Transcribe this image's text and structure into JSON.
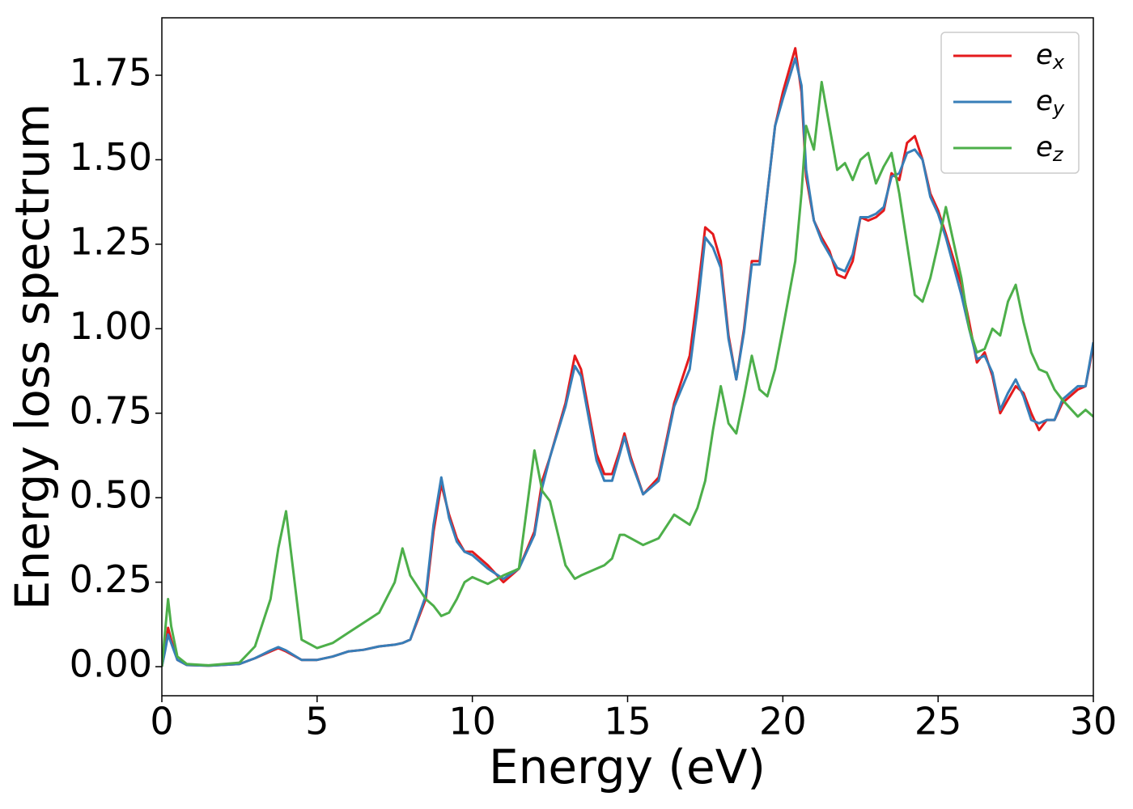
{
  "chart_data": {
    "type": "line",
    "xlabel": "Energy (eV)",
    "ylabel": "Energy loss spectrum",
    "x": [
      0,
      0.1,
      0.2,
      0.3,
      0.5,
      0.8,
      1.5,
      2.5,
      3,
      3.5,
      3.75,
      4,
      4.5,
      5,
      5.5,
      6,
      6.5,
      7,
      7.5,
      7.75,
      8,
      8.5,
      8.75,
      9,
      9.25,
      9.5,
      9.75,
      10,
      10.5,
      11,
      11.5,
      12,
      12.25,
      12.5,
      13,
      13.3,
      13.5,
      14,
      14.25,
      14.5,
      14.75,
      14.9,
      15.1,
      15.5,
      16,
      16.5,
      17,
      17.25,
      17.5,
      17.75,
      18,
      18.25,
      18.5,
      18.75,
      19,
      19.25,
      19.5,
      19.75,
      20,
      20.4,
      20.6,
      20.75,
      21,
      21.25,
      21.5,
      21.75,
      22,
      22.25,
      22.5,
      22.75,
      23,
      23.25,
      23.5,
      23.75,
      24,
      24.25,
      24.5,
      24.75,
      25,
      25.25,
      25.75,
      26,
      26.25,
      26.5,
      26.75,
      27,
      27.25,
      27.5,
      27.75,
      28,
      28.25,
      28.5,
      28.75,
      29,
      29.5,
      29.75,
      30
    ],
    "series": [
      {
        "name": "ex",
        "color": "#e41a1c",
        "values": [
          0,
          0.05,
          0.115,
          0.08,
          0.02,
          0.005,
          0.003,
          0.008,
          0.025,
          0.045,
          0.055,
          0.045,
          0.02,
          0.02,
          0.03,
          0.045,
          0.05,
          0.06,
          0.065,
          0.07,
          0.08,
          0.2,
          0.4,
          0.54,
          0.45,
          0.38,
          0.34,
          0.34,
          0.3,
          0.25,
          0.29,
          0.4,
          0.55,
          0.62,
          0.78,
          0.92,
          0.88,
          0.63,
          0.57,
          0.57,
          0.64,
          0.69,
          0.62,
          0.51,
          0.56,
          0.78,
          0.92,
          1.1,
          1.3,
          1.28,
          1.2,
          0.98,
          0.85,
          1.0,
          1.2,
          1.2,
          1.4,
          1.6,
          1.7,
          1.83,
          1.7,
          1.45,
          1.32,
          1.27,
          1.23,
          1.16,
          1.15,
          1.2,
          1.33,
          1.32,
          1.33,
          1.35,
          1.46,
          1.44,
          1.55,
          1.57,
          1.5,
          1.4,
          1.35,
          1.28,
          1.13,
          1.02,
          0.9,
          0.93,
          0.86,
          0.75,
          0.79,
          0.83,
          0.81,
          0.75,
          0.7,
          0.73,
          0.73,
          0.78,
          0.82,
          0.83,
          0.95
        ]
      },
      {
        "name": "ey",
        "color": "#377eb8",
        "values": [
          0,
          0.045,
          0.095,
          0.07,
          0.02,
          0.005,
          0.003,
          0.008,
          0.025,
          0.048,
          0.058,
          0.048,
          0.02,
          0.02,
          0.03,
          0.045,
          0.05,
          0.06,
          0.065,
          0.07,
          0.08,
          0.21,
          0.42,
          0.56,
          0.44,
          0.37,
          0.34,
          0.33,
          0.29,
          0.26,
          0.29,
          0.39,
          0.53,
          0.62,
          0.77,
          0.89,
          0.86,
          0.61,
          0.55,
          0.55,
          0.63,
          0.68,
          0.61,
          0.51,
          0.55,
          0.77,
          0.88,
          1.06,
          1.27,
          1.24,
          1.18,
          0.97,
          0.85,
          0.99,
          1.19,
          1.19,
          1.4,
          1.6,
          1.68,
          1.8,
          1.72,
          1.47,
          1.32,
          1.26,
          1.22,
          1.18,
          1.17,
          1.22,
          1.33,
          1.33,
          1.34,
          1.36,
          1.45,
          1.46,
          1.52,
          1.53,
          1.5,
          1.39,
          1.34,
          1.27,
          1.1,
          1.0,
          0.91,
          0.92,
          0.87,
          0.76,
          0.81,
          0.85,
          0.8,
          0.73,
          0.72,
          0.73,
          0.73,
          0.79,
          0.83,
          0.83,
          0.96
        ]
      },
      {
        "name": "ez",
        "color": "#4daf4a",
        "values": [
          0,
          0.1,
          0.2,
          0.12,
          0.03,
          0.008,
          0.004,
          0.012,
          0.06,
          0.2,
          0.35,
          0.46,
          0.08,
          0.055,
          0.07,
          0.1,
          0.13,
          0.16,
          0.25,
          0.35,
          0.27,
          0.2,
          0.18,
          0.15,
          0.16,
          0.2,
          0.25,
          0.265,
          0.245,
          0.27,
          0.29,
          0.64,
          0.52,
          0.49,
          0.3,
          0.26,
          0.27,
          0.29,
          0.3,
          0.32,
          0.39,
          0.39,
          0.38,
          0.36,
          0.38,
          0.45,
          0.42,
          0.47,
          0.55,
          0.7,
          0.83,
          0.72,
          0.69,
          0.8,
          0.92,
          0.82,
          0.8,
          0.88,
          1.0,
          1.2,
          1.4,
          1.6,
          1.53,
          1.73,
          1.6,
          1.47,
          1.49,
          1.44,
          1.5,
          1.52,
          1.43,
          1.48,
          1.52,
          1.4,
          1.25,
          1.1,
          1.08,
          1.15,
          1.25,
          1.36,
          1.15,
          1.0,
          0.93,
          0.94,
          1.0,
          0.98,
          1.08,
          1.13,
          1.02,
          0.93,
          0.88,
          0.87,
          0.82,
          0.79,
          0.74,
          0.76,
          0.74
        ]
      }
    ],
    "xlim": [
      0,
      30
    ],
    "xticks": [
      0,
      5,
      10,
      15,
      20,
      25,
      30
    ],
    "ylim": [
      -0.086,
      1.92
    ],
    "yticks": [
      {
        "value": 0,
        "label": "0.00"
      },
      {
        "value": 0.25,
        "label": "0.25"
      },
      {
        "value": 0.5,
        "label": "0.50"
      },
      {
        "value": 0.75,
        "label": "0.75"
      },
      {
        "value": 1,
        "label": "1.00"
      },
      {
        "value": 1.25,
        "label": "1.25"
      },
      {
        "value": 1.5,
        "label": "1.50"
      },
      {
        "value": 1.75,
        "label": "1.75"
      }
    ],
    "legend": "upper right",
    "grid": false
  }
}
